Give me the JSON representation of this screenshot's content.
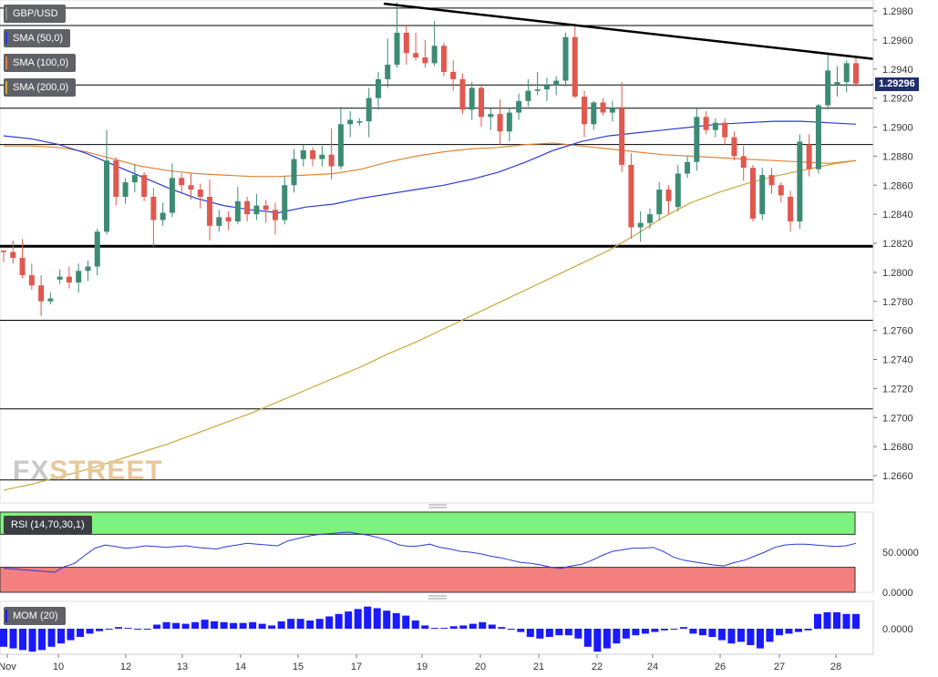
{
  "legend": {
    "symbol": "GBP/USD",
    "sma50": "SMA (50,0)",
    "sma100": "SMA (100,0)",
    "sma200": "SMA (200,0)",
    "rsi": "RSI (14,70,30,1)",
    "mom": "MOM (20)"
  },
  "last_price": "1.29296",
  "watermark": {
    "part1": "FX",
    "part2": "STREET"
  },
  "colors": {
    "bull": "#3d8b74",
    "bear": "#e0584e",
    "sma50": "#2a3bd6",
    "sma100": "#e0853a",
    "sma200": "#c7a93a",
    "rsi_upper_zone": "#7ef27e",
    "rsi_lower_zone": "#f47f7f",
    "rsi_line": "#2a3bd6",
    "mom": "#1a1aff",
    "trendline": "#000000"
  },
  "chart_data": {
    "type": "candlestick",
    "y_axis_ticks": [
      "1.2980",
      "1.2960",
      "1.2940",
      "1.2920",
      "1.2900",
      "1.2880",
      "1.2860",
      "1.2840",
      "1.2820",
      "1.2800",
      "1.2780",
      "1.2760",
      "1.2740",
      "1.2720",
      "1.2700",
      "1.2680",
      "1.2660"
    ],
    "ylim": [
      1.2648,
      1.2985
    ],
    "x_axis_ticks": [
      "Nov",
      "10",
      "12",
      "13",
      "14",
      "15",
      "17",
      "19",
      "20",
      "21",
      "22",
      "24",
      "26",
      "27",
      "28"
    ],
    "horizontal_levels": [
      1.2982,
      1.297,
      1.2929,
      1.2913,
      1.2888,
      1.2818,
      1.2767,
      1.2706,
      1.2657
    ],
    "support_level": 1.2818,
    "trendline": {
      "from": 1.2985,
      "to": 1.2947
    },
    "candles": [
      [
        1.2815,
        1.2815,
        1.2807,
        1.2814
      ],
      [
        1.2814,
        1.2822,
        1.2806,
        1.281
      ],
      [
        1.281,
        1.2823,
        1.2796,
        1.2798
      ],
      [
        1.2798,
        1.2806,
        1.2788,
        1.2791
      ],
      [
        1.2791,
        1.2798,
        1.277,
        1.278
      ],
      [
        1.278,
        1.2786,
        1.2778,
        1.2782
      ],
      [
        1.2795,
        1.2802,
        1.2792,
        1.2797
      ],
      [
        1.2797,
        1.2804,
        1.2789,
        1.2793
      ],
      [
        1.2793,
        1.2806,
        1.2786,
        1.2801
      ],
      [
        1.2801,
        1.2808,
        1.2794,
        1.2804
      ],
      [
        1.2804,
        1.283,
        1.2798,
        1.2828
      ],
      [
        1.2828,
        1.2898,
        1.2826,
        1.2877
      ],
      [
        1.2877,
        1.2879,
        1.2846,
        1.2852
      ],
      [
        1.2852,
        1.2865,
        1.2847,
        1.2862
      ],
      [
        1.2862,
        1.2874,
        1.2855,
        1.2867
      ],
      [
        1.2867,
        1.2869,
        1.2849,
        1.2852
      ],
      [
        1.2852,
        1.2858,
        1.2818,
        1.2836
      ],
      [
        1.2836,
        1.2848,
        1.2832,
        1.2841
      ],
      [
        1.2841,
        1.2875,
        1.2838,
        1.2865
      ],
      [
        1.2865,
        1.2868,
        1.2855,
        1.286
      ],
      [
        1.286,
        1.2868,
        1.285,
        1.2857
      ],
      [
        1.2857,
        1.2861,
        1.2844,
        1.2852
      ],
      [
        1.2852,
        1.2864,
        1.2822,
        1.2832
      ],
      [
        1.2832,
        1.2843,
        1.2828,
        1.2838
      ],
      [
        1.2838,
        1.2842,
        1.2829,
        1.2835
      ],
      [
        1.2835,
        1.2859,
        1.2833,
        1.2849
      ],
      [
        1.2849,
        1.2852,
        1.2835,
        1.284
      ],
      [
        1.284,
        1.2854,
        1.2836,
        1.2846
      ],
      [
        1.2846,
        1.285,
        1.2834,
        1.2843
      ],
      [
        1.2843,
        1.2848,
        1.2826,
        1.2836
      ],
      [
        1.2836,
        1.2866,
        1.2833,
        1.286
      ],
      [
        1.286,
        1.2885,
        1.2855,
        1.2878
      ],
      [
        1.2878,
        1.2888,
        1.2873,
        1.2884
      ],
      [
        1.2884,
        1.2886,
        1.2873,
        1.2878
      ],
      [
        1.2878,
        1.2887,
        1.2873,
        1.2881
      ],
      [
        1.2881,
        1.2899,
        1.2864,
        1.2873
      ],
      [
        1.2873,
        1.2914,
        1.2871,
        1.2902
      ],
      [
        1.2902,
        1.2911,
        1.2893,
        1.2905
      ],
      [
        1.2903,
        1.2906,
        1.2901,
        1.2904
      ],
      [
        1.2904,
        1.2927,
        1.2893,
        1.292
      ],
      [
        1.292,
        1.2938,
        1.2912,
        1.2933
      ],
      [
        1.2933,
        1.2961,
        1.2927,
        1.2943
      ],
      [
        1.2943,
        1.2986,
        1.2941,
        1.2965
      ],
      [
        1.2965,
        1.297,
        1.2943,
        1.2951
      ],
      [
        1.2951,
        1.2965,
        1.2946,
        1.2948
      ],
      [
        1.2948,
        1.296,
        1.2941,
        1.2944
      ],
      [
        1.2944,
        1.2973,
        1.2942,
        1.2956
      ],
      [
        1.2956,
        1.2958,
        1.2935,
        1.2938
      ],
      [
        1.2938,
        1.2946,
        1.2925,
        1.2933
      ],
      [
        1.2933,
        1.2937,
        1.2909,
        1.2912
      ],
      [
        1.2912,
        1.2931,
        1.2905,
        1.2927
      ],
      [
        1.2927,
        1.2929,
        1.29,
        1.2907
      ],
      [
        1.2907,
        1.2913,
        1.2898,
        1.2909
      ],
      [
        1.2909,
        1.2919,
        1.2888,
        1.2897
      ],
      [
        1.2897,
        1.2913,
        1.289,
        1.291
      ],
      [
        1.291,
        1.2923,
        1.2905,
        1.2918
      ],
      [
        1.2918,
        1.2933,
        1.2914,
        1.2925
      ],
      [
        1.2925,
        1.2938,
        1.2922,
        1.2926
      ],
      [
        1.2926,
        1.2934,
        1.2918,
        1.2929
      ],
      [
        1.2929,
        1.2935,
        1.2922,
        1.2932
      ],
      [
        1.2932,
        1.2965,
        1.2928,
        1.2962
      ],
      [
        1.2962,
        1.2971,
        1.292,
        1.2921
      ],
      [
        1.2921,
        1.2925,
        1.2893,
        1.2902
      ],
      [
        1.2902,
        1.2918,
        1.2898,
        1.2917
      ],
      [
        1.2917,
        1.292,
        1.2908,
        1.291
      ],
      [
        1.291,
        1.2918,
        1.2904,
        1.2913
      ],
      [
        1.2913,
        1.2931,
        1.2869,
        1.2874
      ],
      [
        1.2874,
        1.2882,
        1.2823,
        1.2831
      ],
      [
        1.2831,
        1.2842,
        1.2821,
        1.2834
      ],
      [
        1.2834,
        1.2844,
        1.283,
        1.284
      ],
      [
        1.284,
        1.2862,
        1.2836,
        1.2857
      ],
      [
        1.2857,
        1.286,
        1.284,
        1.2849
      ],
      [
        1.2845,
        1.2874,
        1.2842,
        1.2868
      ],
      [
        1.2868,
        1.288,
        1.2865,
        1.2876
      ],
      [
        1.2876,
        1.2913,
        1.287,
        1.2907
      ],
      [
        1.2907,
        1.2911,
        1.2895,
        1.2898
      ],
      [
        1.2898,
        1.2906,
        1.2893,
        1.2903
      ],
      [
        1.2903,
        1.2906,
        1.2888,
        1.2893
      ],
      [
        1.2893,
        1.2897,
        1.2877,
        1.288
      ],
      [
        1.288,
        1.2887,
        1.2863,
        1.2872
      ],
      [
        1.2872,
        1.2874,
        1.2835,
        1.2837
      ],
      [
        1.284,
        1.2872,
        1.2836,
        1.2867
      ],
      [
        1.2867,
        1.2872,
        1.2854,
        1.286
      ],
      [
        1.286,
        1.2862,
        1.2848,
        1.2853
      ],
      [
        1.2852,
        1.2856,
        1.2828,
        1.2835
      ],
      [
        1.2835,
        1.2895,
        1.283,
        1.289
      ],
      [
        1.2888,
        1.2895,
        1.2866,
        1.2871
      ],
      [
        1.2871,
        1.2916,
        1.2868,
        1.2915
      ],
      [
        1.2915,
        1.295,
        1.2912,
        1.2939
      ],
      [
        1.2929,
        1.2942,
        1.2921,
        1.2931
      ],
      [
        1.2931,
        1.2946,
        1.2924,
        1.2944
      ],
      [
        1.2944,
        1.2949,
        1.2928,
        1.293
      ]
    ],
    "sma50": [
      1.2894,
      1.2892,
      1.2888,
      1.2882,
      1.2874,
      1.2866,
      1.2858,
      1.2851,
      1.2846,
      1.2843,
      1.2841,
      1.2845,
      1.2847,
      1.2851,
      1.2854,
      1.2857,
      1.286,
      1.2864,
      1.2869,
      1.2876,
      1.2884,
      1.289,
      1.2894,
      1.2896,
      1.2898,
      1.29,
      1.2902,
      1.2903,
      1.2904,
      1.2904,
      1.2903,
      1.2902
    ],
    "sma100": [
      1.2887,
      1.2887,
      1.2886,
      1.2883,
      1.2878,
      1.2873,
      1.287,
      1.2868,
      1.2867,
      1.2866,
      1.2866,
      1.2867,
      1.2868,
      1.2871,
      1.2876,
      1.288,
      1.2883,
      1.2885,
      1.2886,
      1.2888,
      1.2889,
      1.2887,
      1.2885,
      1.2883,
      1.2881,
      1.288,
      1.2879,
      1.2878,
      1.2877,
      1.2876,
      1.2875,
      1.2877
    ],
    "sma200": [
      1.265,
      1.2654,
      1.2659,
      1.2664,
      1.267,
      1.2676,
      1.2682,
      1.2689,
      1.2696,
      1.2703,
      1.2711,
      1.2719,
      1.2727,
      1.2735,
      1.2744,
      1.2752,
      1.2761,
      1.277,
      1.2779,
      1.2788,
      1.2797,
      1.2806,
      1.2815,
      1.2826,
      1.2838,
      1.2848,
      1.2855,
      1.2861,
      1.2866,
      1.287,
      1.2874,
      1.2877
    ],
    "rsi": {
      "ylim": [
        0,
        100
      ],
      "ticks": [
        "50.0000",
        "0.0000"
      ],
      "overbought": 70,
      "oversold": 30,
      "values": [
        30,
        29,
        28,
        27,
        26,
        25,
        32,
        36,
        46,
        55,
        59,
        57,
        55,
        56,
        58,
        57,
        56,
        57,
        58,
        56,
        55,
        54,
        57,
        59,
        61,
        60,
        59,
        58,
        64,
        67,
        70,
        72,
        73,
        74,
        75,
        73,
        71,
        68,
        64,
        59,
        57,
        58,
        60,
        56,
        54,
        51,
        50,
        48,
        45,
        43,
        40,
        37,
        36,
        34,
        31,
        30,
        33,
        35,
        40,
        46,
        51,
        53,
        55,
        55,
        56,
        51,
        44,
        40,
        38,
        36,
        34,
        33,
        37,
        40,
        45,
        50,
        56,
        59,
        60,
        60,
        59,
        58,
        57,
        58,
        61
      ]
    },
    "mom": {
      "ticks": [
        "0.0000"
      ],
      "values": [
        -22,
        -24,
        -26,
        -28,
        -26,
        -22,
        -18,
        -14,
        -10,
        -6,
        -3,
        0,
        2,
        1,
        -1,
        0,
        5,
        8,
        7,
        6,
        8,
        11,
        9,
        8,
        7,
        7,
        8,
        6,
        4,
        9,
        12,
        12,
        10,
        12,
        15,
        18,
        21,
        24,
        27,
        25,
        22,
        19,
        16,
        10,
        4,
        1,
        1,
        3,
        4,
        6,
        8,
        5,
        2,
        0,
        -4,
        -10,
        -12,
        -10,
        -8,
        -8,
        -12,
        -22,
        -28,
        -24,
        -18,
        -12,
        -8,
        -6,
        -4,
        -2,
        -1,
        2,
        -6,
        -8,
        -10,
        -14,
        -18,
        -16,
        -20,
        -24,
        -16,
        -8,
        -6,
        -4,
        -2,
        18,
        20,
        20,
        18,
        18
      ]
    }
  }
}
